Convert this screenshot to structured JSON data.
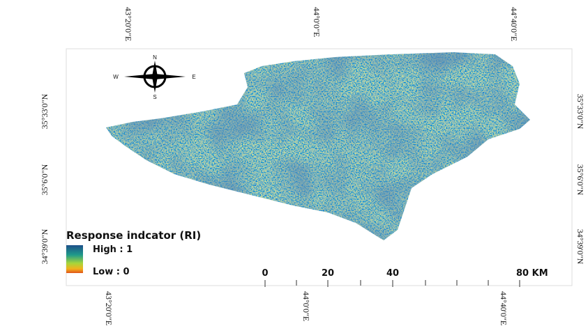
{
  "graticule": {
    "longitudes": [
      "43°20'0\"E",
      "44°0'0\"E",
      "44°40'0\"E"
    ],
    "latitudes": [
      "35°33'0\"N",
      "35°6'0\"N",
      "34°39'0\"N"
    ]
  },
  "compass": {
    "n": "N",
    "s": "S",
    "w": "W",
    "e": "E"
  },
  "legend": {
    "title": "Response indcator (RI)",
    "high": "High : 1",
    "low": "Low : 0"
  },
  "scale_bar": {
    "labels": [
      "0",
      "20",
      "40",
      "80 KM"
    ]
  }
}
